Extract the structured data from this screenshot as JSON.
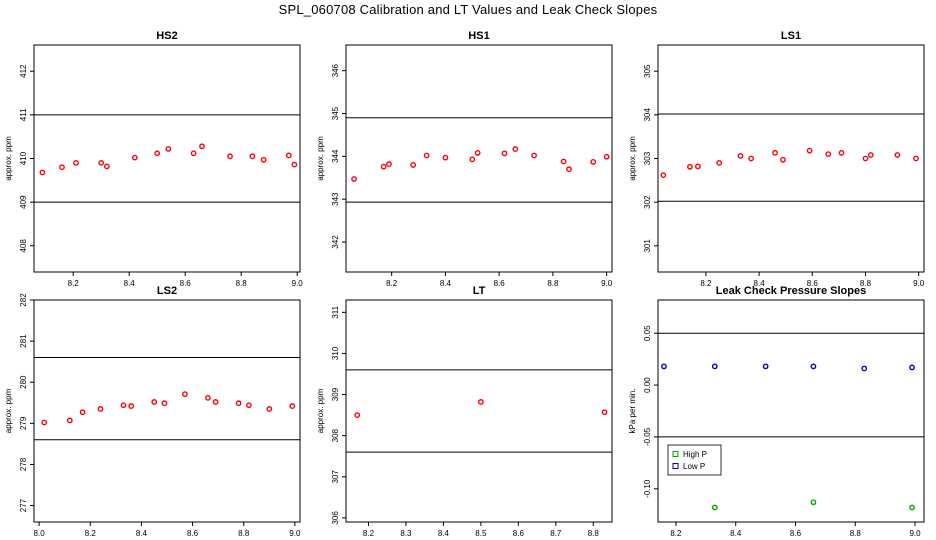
{
  "figure": {
    "title": "SPL_060708  Calibration and LT Values and Leak Check Slopes"
  },
  "colors": {
    "point": "#ff0000",
    "high": "#00aa00",
    "low": "#0000cc",
    "line": "#000000"
  },
  "chart_data": [
    {
      "id": "hs2",
      "type": "scatter",
      "title": "HS2",
      "ylabel": "approx. ppm",
      "xlabel": "",
      "xlim": [
        8.06,
        9.01
      ],
      "ylim": [
        407.4,
        412.6
      ],
      "xticks": [
        8.2,
        8.4,
        8.6,
        8.8,
        9.0
      ],
      "xtick_labels": [
        "8.2",
        "8.4",
        "8.6",
        "8.8",
        "9.0"
      ],
      "yticks": [
        408,
        409,
        410,
        411,
        412
      ],
      "ytick_labels": [
        "408",
        "409",
        "410",
        "411",
        "412"
      ],
      "hlines": [
        409,
        411
      ],
      "grid": false,
      "series": [
        {
          "marker": "circle",
          "color": "#ff0000",
          "x": [
            8.09,
            8.16,
            8.21,
            8.3,
            8.32,
            8.42,
            8.5,
            8.54,
            8.63,
            8.66,
            8.76,
            8.84,
            8.88,
            8.97,
            8.99
          ],
          "y": [
            409.68,
            409.8,
            409.9,
            409.9,
            409.82,
            410.02,
            410.12,
            410.22,
            410.12,
            410.28,
            410.05,
            410.05,
            409.97,
            410.07,
            409.86
          ]
        }
      ]
    },
    {
      "id": "hs1",
      "type": "scatter",
      "title": "HS1",
      "ylabel": "approx. ppm",
      "xlabel": "",
      "xlim": [
        8.03,
        9.02
      ],
      "ylim": [
        341.3,
        346.6
      ],
      "xticks": [
        8.2,
        8.4,
        8.6,
        8.8,
        9.0
      ],
      "xtick_labels": [
        "8.2",
        "8.4",
        "8.6",
        "8.8",
        "9.0"
      ],
      "yticks": [
        342,
        343,
        344,
        345,
        346
      ],
      "ytick_labels": [
        "342",
        "343",
        "344",
        "345",
        "346"
      ],
      "hlines": [
        342.93,
        344.9
      ],
      "grid": false,
      "series": [
        {
          "marker": "circle",
          "color": "#ff0000",
          "x": [
            8.06,
            8.17,
            8.19,
            8.28,
            8.33,
            8.4,
            8.5,
            8.52,
            8.62,
            8.66,
            8.73,
            8.84,
            8.86,
            8.95,
            9.0
          ],
          "y": [
            343.47,
            343.76,
            343.82,
            343.8,
            344.02,
            343.97,
            343.93,
            344.08,
            344.07,
            344.17,
            344.02,
            343.88,
            343.7,
            343.87,
            343.99
          ]
        }
      ]
    },
    {
      "id": "ls1",
      "type": "scatter",
      "title": "LS1",
      "ylabel": "approx. ppm",
      "xlabel": "",
      "xlim": [
        8.02,
        9.02
      ],
      "ylim": [
        300.4,
        305.6
      ],
      "xticks": [
        8.2,
        8.4,
        8.6,
        8.8,
        9.0
      ],
      "xtick_labels": [
        "8.2",
        "8.4",
        "8.6",
        "8.8",
        "9.0"
      ],
      "yticks": [
        301,
        302,
        303,
        304,
        305
      ],
      "ytick_labels": [
        "301",
        "302",
        "303",
        "304",
        "305"
      ],
      "hlines": [
        302.02,
        304.02
      ],
      "grid": false,
      "series": [
        {
          "marker": "circle",
          "color": "#ff0000",
          "x": [
            8.04,
            8.14,
            8.17,
            8.25,
            8.33,
            8.37,
            8.46,
            8.49,
            8.59,
            8.66,
            8.71,
            8.8,
            8.82,
            8.92,
            8.99
          ],
          "y": [
            302.62,
            302.81,
            302.82,
            302.9,
            303.06,
            303.0,
            303.13,
            302.97,
            303.18,
            303.1,
            303.13,
            303.0,
            303.08,
            303.08,
            303.0
          ]
        }
      ]
    },
    {
      "id": "ls2",
      "type": "scatter",
      "title": "LS2",
      "ylabel": "approx. ppm",
      "xlabel": "",
      "xlim": [
        7.98,
        9.02
      ],
      "ylim": [
        276.6,
        282.0
      ],
      "xticks": [
        8.0,
        8.2,
        8.4,
        8.6,
        8.8,
        9.0
      ],
      "xtick_labels": [
        "8.0",
        "8.2",
        "8.4",
        "8.6",
        "8.8",
        "9.0"
      ],
      "yticks": [
        277,
        278,
        279,
        280,
        281,
        282
      ],
      "ytick_labels": [
        "277",
        "278",
        "279",
        "280",
        "281",
        "282"
      ],
      "hlines": [
        278.6,
        280.6
      ],
      "grid": false,
      "series": [
        {
          "marker": "circle",
          "color": "#ff0000",
          "x": [
            8.02,
            8.12,
            8.17,
            8.24,
            8.33,
            8.36,
            8.45,
            8.49,
            8.57,
            8.66,
            8.69,
            8.78,
            8.82,
            8.9,
            8.99
          ],
          "y": [
            279.02,
            279.07,
            279.27,
            279.35,
            279.44,
            279.42,
            279.52,
            279.49,
            279.71,
            279.62,
            279.52,
            279.49,
            279.44,
            279.35,
            279.42
          ]
        }
      ]
    },
    {
      "id": "lt",
      "type": "scatter",
      "title": "LT",
      "ylabel": "approx. ppm",
      "xlabel": "",
      "xlim": [
        8.14,
        8.85
      ],
      "ylim": [
        305.9,
        311.3
      ],
      "xticks": [
        8.2,
        8.3,
        8.4,
        8.5,
        8.6,
        8.7,
        8.8
      ],
      "xtick_labels": [
        "8.2",
        "8.3",
        "8.4",
        "8.5",
        "8.6",
        "8.7",
        "8.8"
      ],
      "yticks": [
        306,
        307,
        308,
        309,
        310,
        311
      ],
      "ytick_labels": [
        "306",
        "307",
        "308",
        "309",
        "310",
        "311"
      ],
      "hlines": [
        307.6,
        309.6
      ],
      "grid": false,
      "series": [
        {
          "marker": "circle",
          "color": "#ff0000",
          "x": [
            8.17,
            8.5,
            8.83
          ],
          "y": [
            308.5,
            308.82,
            308.57
          ]
        }
      ]
    },
    {
      "id": "leak",
      "type": "scatter",
      "title": "Leak Check Pressure Slopes",
      "ylabel": "kPa per min.",
      "xlabel": "",
      "xlim": [
        8.14,
        9.03
      ],
      "ylim": [
        -0.132,
        0.082
      ],
      "xticks": [
        8.2,
        8.4,
        8.6,
        8.8,
        9.0
      ],
      "xtick_labels": [
        "8.2",
        "8.4",
        "8.6",
        "8.8",
        "9.0"
      ],
      "yticks": [
        -0.1,
        -0.05,
        0.0,
        0.05
      ],
      "ytick_labels": [
        "-0.10",
        "-0.05",
        "0.00",
        "0.05"
      ],
      "hlines": [
        -0.05,
        0.05
      ],
      "grid": false,
      "legend": {
        "placement": "left",
        "entries": [
          "High P",
          "Low P"
        ]
      },
      "series": [
        {
          "name": "High P",
          "marker": "circle",
          "color": "#00aa00",
          "x": [
            8.33,
            8.66,
            8.99
          ],
          "y": [
            -0.118,
            -0.113,
            -0.118
          ]
        },
        {
          "name": "Low P",
          "marker": "circle",
          "color": "#0000cc",
          "x": [
            8.16,
            8.33,
            8.5,
            8.66,
            8.83,
            8.99
          ],
          "y": [
            0.018,
            0.018,
            0.018,
            0.018,
            0.016,
            0.017
          ]
        }
      ]
    }
  ]
}
